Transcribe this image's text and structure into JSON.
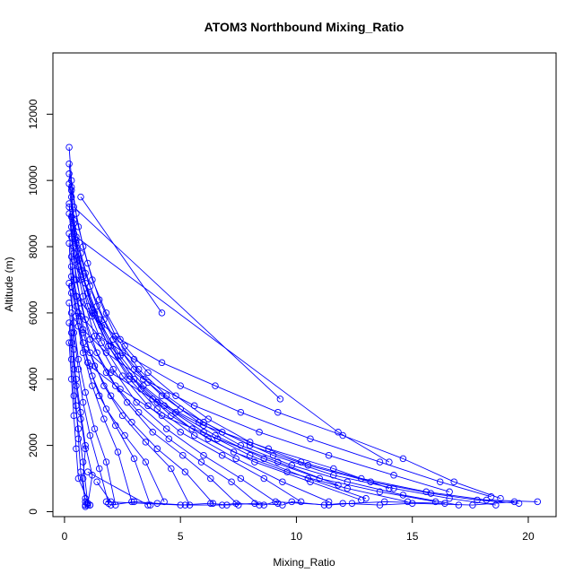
{
  "chart_data": {
    "type": "scatter",
    "title": "ATOM3 Northbound Mixing_Ratio",
    "xlabel": "Mixing_Ratio",
    "ylabel": "Altitude (m)",
    "xlim": [
      -0.5,
      21.2
    ],
    "ylim": [
      -150,
      13850
    ],
    "xticks": [
      0,
      5,
      10,
      15,
      20
    ],
    "yticks": [
      0,
      2000,
      4000,
      6000,
      8000,
      10000,
      12000
    ],
    "series_color": "#0000ff",
    "marker": "open-circle",
    "grid": false,
    "legend": "none",
    "series": [
      {
        "x": [
          0.2,
          0.3,
          0.5,
          0.8,
          1.2,
          1.8,
          2.6,
          3.6,
          4.8,
          6.2,
          8.0,
          10.2,
          12.8,
          15.6,
          18.2,
          20.4
        ],
        "y": [
          11000,
          10000,
          9000,
          8000,
          7000,
          6000,
          5000,
          4200,
          3500,
          2800,
          2100,
          1500,
          1000,
          600,
          350,
          300
        ]
      },
      {
        "x": [
          0.2,
          0.3,
          0.6,
          1.0,
          1.5,
          2.2,
          3.2,
          4.4,
          6.0,
          8.0,
          10.5,
          13.2,
          15.8,
          17.8,
          19.6
        ],
        "y": [
          10500,
          9800,
          8600,
          7500,
          6400,
          5300,
          4300,
          3500,
          2700,
          2000,
          1400,
          900,
          550,
          350,
          250
        ]
      },
      {
        "x": [
          0.3,
          0.4,
          0.7,
          1.1,
          1.7,
          2.5,
          3.6,
          5.0,
          6.8,
          9.0,
          11.6,
          14.2,
          16.6,
          18.6
        ],
        "y": [
          9500,
          8800,
          7800,
          6800,
          5800,
          4800,
          3900,
          3100,
          2400,
          1700,
          1100,
          700,
          400,
          200
        ]
      },
      {
        "x": [
          0.2,
          0.5,
          0.9,
          1.4,
          2.1,
          3.0,
          4.2,
          5.8,
          7.6,
          9.8,
          12.2,
          14.6,
          17.0
        ],
        "y": [
          9200,
          8200,
          7200,
          6200,
          5200,
          4300,
          3500,
          2700,
          2000,
          1400,
          900,
          500,
          200
        ]
      },
      {
        "x": [
          0.3,
          0.6,
          1.0,
          1.6,
          2.4,
          3.4,
          4.8,
          6.5,
          8.6,
          11.0,
          13.6,
          16.0
        ],
        "y": [
          8600,
          7600,
          6600,
          5600,
          4700,
          3800,
          3000,
          2300,
          1600,
          1000,
          600,
          300
        ]
      },
      {
        "x": [
          0.4,
          0.7,
          1.2,
          1.9,
          2.8,
          4.0,
          5.5,
          7.3,
          9.6,
          12.2,
          14.8
        ],
        "y": [
          8000,
          7000,
          6000,
          5000,
          4100,
          3300,
          2500,
          1800,
          1200,
          700,
          300
        ]
      },
      {
        "x": [
          0.2,
          0.4,
          0.8,
          1.3,
          2.0,
          3.0,
          4.3,
          6.0,
          8.0,
          10.5,
          13.0
        ],
        "y": [
          9900,
          8400,
          7100,
          6000,
          5000,
          4000,
          3200,
          2400,
          1700,
          1000,
          400
        ]
      },
      {
        "x": [
          0.3,
          0.5,
          0.9,
          1.5,
          2.3,
          3.3,
          4.6,
          6.2,
          8.2,
          10.6,
          12.8
        ],
        "y": [
          9700,
          8100,
          6900,
          5800,
          4700,
          3700,
          2900,
          2200,
          1500,
          900,
          350
        ]
      },
      {
        "x": [
          0.2,
          0.4,
          0.7,
          1.2,
          1.9,
          2.8,
          4.0,
          5.6,
          7.4,
          9.4,
          11.4
        ],
        "y": [
          10200,
          8700,
          7300,
          6100,
          5000,
          4000,
          3100,
          2300,
          1600,
          900,
          300
        ]
      },
      {
        "x": [
          0.3,
          0.6,
          1.0,
          1.6,
          2.5,
          3.6,
          5.0,
          6.8,
          8.6,
          10.2
        ],
        "y": [
          8900,
          7400,
          6200,
          5100,
          4100,
          3200,
          2400,
          1700,
          1000,
          300
        ]
      },
      {
        "x": [
          0.2,
          0.4,
          0.8,
          1.3,
          2.1,
          3.1,
          4.4,
          6.0,
          7.6,
          9.2
        ],
        "y": [
          9300,
          7800,
          6500,
          5300,
          4300,
          3300,
          2500,
          1700,
          1000,
          250
        ]
      },
      {
        "x": [
          0.3,
          0.5,
          0.9,
          1.4,
          2.2,
          3.2,
          4.5,
          5.9,
          7.2,
          8.4
        ],
        "y": [
          8300,
          7000,
          5800,
          4800,
          3800,
          3000,
          2200,
          1500,
          900,
          200
        ]
      },
      {
        "x": [
          0.2,
          0.4,
          0.7,
          1.1,
          1.8,
          2.7,
          3.8,
          5.1,
          6.3,
          7.5
        ],
        "y": [
          9000,
          7600,
          6300,
          5200,
          4200,
          3300,
          2400,
          1700,
          1000,
          200
        ]
      },
      {
        "x": [
          0.3,
          0.5,
          0.8,
          1.3,
          2.0,
          2.9,
          4.0,
          5.2,
          6.4
        ],
        "y": [
          7700,
          6500,
          5400,
          4400,
          3500,
          2700,
          1900,
          1200,
          250
        ]
      },
      {
        "x": [
          0.2,
          0.4,
          0.7,
          1.1,
          1.7,
          2.5,
          3.5,
          4.6,
          5.4
        ],
        "y": [
          8400,
          7000,
          5900,
          4800,
          3800,
          2900,
          2100,
          1300,
          200
        ]
      },
      {
        "x": [
          0.3,
          0.5,
          0.8,
          1.2,
          1.8,
          2.6,
          3.5,
          4.3
        ],
        "y": [
          7400,
          6200,
          5100,
          4100,
          3100,
          2300,
          1500,
          300
        ]
      },
      {
        "x": [
          0.2,
          0.3,
          0.6,
          1.0,
          1.5,
          2.2,
          3.0,
          3.7
        ],
        "y": [
          8100,
          6800,
          5600,
          4500,
          3500,
          2600,
          1600,
          200
        ]
      },
      {
        "x": [
          0.3,
          0.5,
          0.8,
          1.2,
          1.7,
          2.3,
          2.9
        ],
        "y": [
          7100,
          5900,
          4800,
          3800,
          2800,
          1800,
          300
        ]
      },
      {
        "x": [
          0.2,
          0.4,
          0.6,
          0.9,
          1.3,
          1.8,
          2.2
        ],
        "y": [
          6900,
          5700,
          4600,
          3600,
          2500,
          1500,
          200
        ]
      },
      {
        "x": [
          0.3,
          0.4,
          0.6,
          0.8,
          1.1,
          1.5,
          1.9
        ],
        "y": [
          6600,
          5400,
          4300,
          3300,
          2300,
          1300,
          250
        ]
      },
      {
        "x": [
          0.2,
          0.3,
          0.5,
          0.7,
          0.9,
          1.2,
          1.0
        ],
        "y": [
          6300,
          5100,
          4000,
          3000,
          2000,
          1100,
          200
        ]
      },
      {
        "x": [
          0.3,
          0.4,
          0.5,
          0.7,
          0.9,
          0.8,
          0.9
        ],
        "y": [
          6000,
          4900,
          3800,
          2800,
          1900,
          1000,
          200
        ]
      },
      {
        "x": [
          0.2,
          0.3,
          0.4,
          0.6,
          0.8,
          1.0
        ],
        "y": [
          5700,
          4600,
          3500,
          2500,
          1500,
          250
        ]
      },
      {
        "x": [
          0.3,
          0.4,
          0.5,
          0.6,
          0.7,
          0.9
        ],
        "y": [
          5400,
          4300,
          3200,
          2200,
          1200,
          300
        ]
      },
      {
        "x": [
          0.2,
          0.3,
          0.4,
          0.5,
          0.6,
          1.1
        ],
        "y": [
          5100,
          4000,
          2900,
          1900,
          1000,
          200
        ]
      },
      {
        "x": [
          0.5,
          1.2,
          2.4,
          4.2,
          6.5,
          9.2,
          12.0,
          14.6,
          16.8,
          18.8
        ],
        "y": [
          6500,
          5900,
          5200,
          4500,
          3800,
          3000,
          2300,
          1600,
          900,
          400
        ]
      },
      {
        "x": [
          0.6,
          1.5,
          3.0,
          5.0,
          7.6,
          10.6,
          13.6,
          16.2,
          18.4
        ],
        "y": [
          6000,
          5300,
          4600,
          3800,
          3000,
          2200,
          1500,
          900,
          450
        ]
      },
      {
        "x": [
          0.8,
          1.8,
          3.4,
          5.6,
          8.4,
          11.4,
          14.2,
          16.6
        ],
        "y": [
          5500,
          4800,
          4000,
          3200,
          2400,
          1700,
          1100,
          600
        ]
      },
      {
        "x": [
          0.9,
          2.0,
          3.8,
          6.0,
          8.8,
          11.6,
          14.0
        ],
        "y": [
          4900,
          4200,
          3400,
          2600,
          1900,
          1300,
          700
        ]
      },
      {
        "x": [
          1.1,
          2.4,
          4.2,
          6.6,
          9.2,
          11.8
        ],
        "y": [
          4400,
          3700,
          2900,
          2200,
          1500,
          800
        ]
      },
      {
        "x": [
          0.7,
          4.2
        ],
        "y": [
          9500,
          6000
        ]
      },
      {
        "x": [
          0.4,
          9.3
        ],
        "y": [
          9200,
          3400
        ]
      },
      {
        "x": [
          0.5,
          11.8,
          14.0
        ],
        "y": [
          8300,
          2400,
          1500
        ]
      },
      {
        "x": [
          1.0,
          3.6
        ],
        "y": [
          1200,
          200
        ]
      },
      {
        "x": [
          1.4,
          2.0
        ],
        "y": [
          900,
          300
        ]
      },
      {
        "x": [
          0.9,
          1.1,
          0.9,
          1.0
        ],
        "y": [
          400,
          200,
          150,
          250
        ]
      },
      {
        "x": [
          1.8,
          5.0,
          6.3,
          7.0,
          8.2,
          9.4,
          9.8,
          11.2,
          12.0,
          13.6,
          15.0,
          17.6,
          19.4
        ],
        "y": [
          300,
          200,
          250,
          200,
          250,
          200,
          300,
          200,
          250,
          200,
          250,
          200,
          300
        ]
      },
      {
        "x": [
          2.0,
          3.0,
          4.0,
          5.2,
          6.8,
          7.4,
          8.6,
          9.1,
          11.4,
          12.4,
          13.8,
          16.4
        ],
        "y": [
          200,
          300,
          250,
          200,
          200,
          250,
          200,
          300,
          200,
          250,
          300,
          250
        ]
      }
    ]
  }
}
